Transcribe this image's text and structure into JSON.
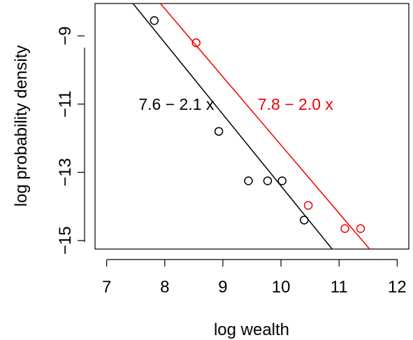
{
  "chart_data": {
    "type": "scatter",
    "xlabel": "log wealth",
    "ylabel": "log probability density",
    "xlim": [
      6.8,
      12.2
    ],
    "ylim": [
      -15.25,
      -8.05
    ],
    "x_ticks": [
      "7",
      "8",
      "9",
      "10",
      "11",
      "12"
    ],
    "x_tick_values": [
      7,
      8,
      9,
      10,
      11,
      12
    ],
    "y_ticks": [
      "-9",
      "-11",
      "-13",
      "-15"
    ],
    "y_tick_values": [
      -9,
      -11,
      -13,
      -15
    ],
    "grid": false,
    "series": [
      {
        "color": "#000000",
        "points": [
          {
            "x": 7.82,
            "y": -8.55
          },
          {
            "x": 8.93,
            "y": -11.8
          },
          {
            "x": 9.44,
            "y": -13.25
          },
          {
            "x": 9.77,
            "y": -13.25
          },
          {
            "x": 10.02,
            "y": -13.25
          },
          {
            "x": 10.4,
            "y": -14.4
          }
        ],
        "fit": {
          "intercept": 7.6,
          "slope": -2.1
        },
        "fit_label": "7.6 − 2.1 x",
        "label_anchor": {
          "x": 8.2,
          "y": -11.0
        }
      },
      {
        "color": "#ee0000",
        "points": [
          {
            "x": 8.54,
            "y": -9.2
          },
          {
            "x": 10.47,
            "y": -13.97
          },
          {
            "x": 11.1,
            "y": -14.65
          },
          {
            "x": 11.37,
            "y": -14.65
          }
        ],
        "fit": {
          "intercept": 7.8,
          "slope": -2.0
        },
        "fit_label": "7.8 − 2.0 x",
        "label_anchor": {
          "x": 10.25,
          "y": -11.0
        }
      }
    ]
  }
}
